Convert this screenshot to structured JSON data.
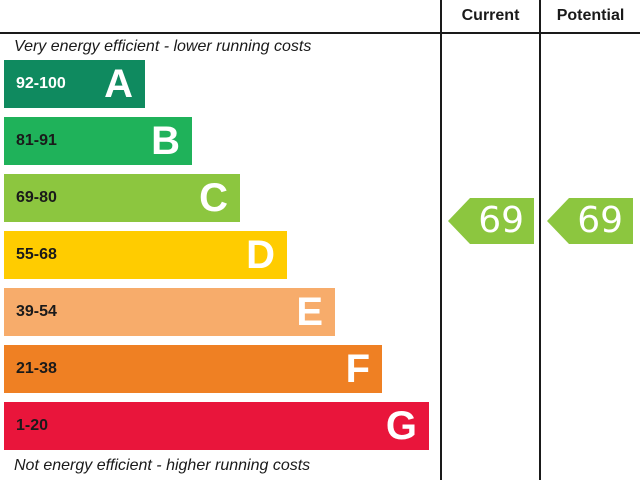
{
  "header": {
    "current_label": "Current",
    "potential_label": "Potential"
  },
  "captions": {
    "top": "Very energy efficient - lower running costs",
    "bottom": "Not energy efficient - higher running costs"
  },
  "bands": [
    {
      "letter": "A",
      "range": "92-100",
      "color": "#0f8a5f",
      "range_color": "#ffffff"
    },
    {
      "letter": "B",
      "range": "81-91",
      "color": "#1fb25a",
      "range_color": "#1a1a1a"
    },
    {
      "letter": "C",
      "range": "69-80",
      "color": "#8cc63f",
      "range_color": "#1a1a1a"
    },
    {
      "letter": "D",
      "range": "55-68",
      "color": "#ffcc00",
      "range_color": "#1a1a1a"
    },
    {
      "letter": "E",
      "range": "39-54",
      "color": "#f7ac6b",
      "range_color": "#1a1a1a"
    },
    {
      "letter": "F",
      "range": "21-38",
      "color": "#ef8023",
      "range_color": "#1a1a1a"
    },
    {
      "letter": "G",
      "range": "1-20",
      "color": "#e9153b",
      "range_color": "#1a1a1a"
    }
  ],
  "ratings": {
    "current": {
      "value": "69",
      "color": "#8cc63f"
    },
    "potential": {
      "value": "69",
      "color": "#8cc63f"
    }
  }
}
